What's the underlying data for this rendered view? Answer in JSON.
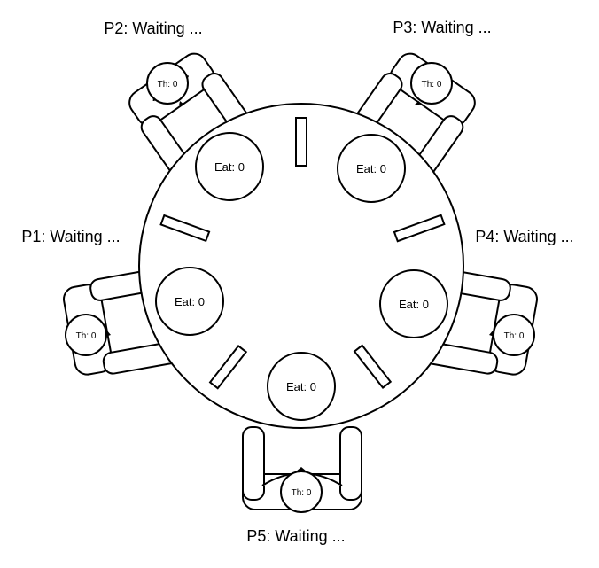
{
  "philosophers": [
    {
      "id": "p1",
      "label": "P1: Waiting ...",
      "plate": "Eat: 0",
      "head": "Th: 0"
    },
    {
      "id": "p2",
      "label": "P2: Waiting ...",
      "plate": "Eat: 0",
      "head": "Th: 0"
    },
    {
      "id": "p3",
      "label": "P3: Waiting ...",
      "plate": "Eat: 0",
      "head": "Th: 0"
    },
    {
      "id": "p4",
      "label": "P4: Waiting ...",
      "plate": "Eat: 0",
      "head": "Th: 0"
    },
    {
      "id": "p5",
      "label": "P5: Waiting ...",
      "plate": "Eat: 0",
      "head": "Th: 0"
    }
  ]
}
